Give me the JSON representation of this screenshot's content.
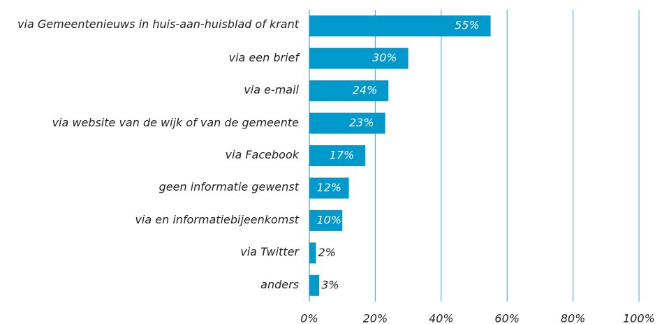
{
  "chart_data": {
    "type": "bar",
    "orientation": "horizontal",
    "categories": [
      "via Gemeentenieuws in huis-aan-huisblad of krant",
      "via een brief",
      "via e-mail",
      "via website van de wijk of van de gemeente",
      "via Facebook",
      "geen informatie gewenst",
      "via en informatiebijeenkomst",
      "via Twitter",
      "anders"
    ],
    "values": [
      55,
      30,
      24,
      23,
      17,
      12,
      10,
      2,
      3
    ],
    "value_labels": [
      "55%",
      "30%",
      "24%",
      "23%",
      "17%",
      "12%",
      "10%",
      "2%",
      "3%"
    ],
    "color": "#0099cc",
    "xlim": [
      0,
      100
    ],
    "xticks": [
      {
        "value": 0,
        "label": "0%"
      },
      {
        "value": 20,
        "label": "20%"
      },
      {
        "value": 40,
        "label": "40%"
      },
      {
        "value": 60,
        "label": "60%"
      },
      {
        "value": 80,
        "label": "80%"
      },
      {
        "value": 100,
        "label": "100%"
      }
    ],
    "grid": true
  }
}
